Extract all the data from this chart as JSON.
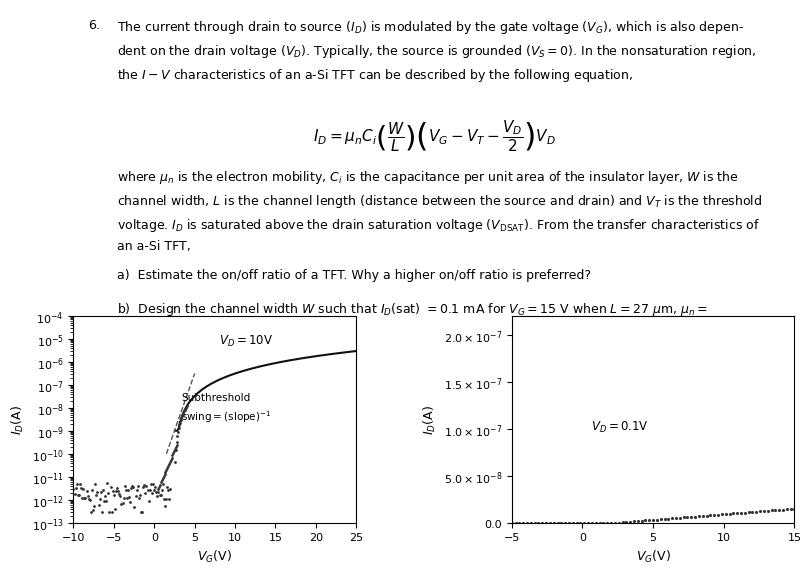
{
  "text_content": {
    "main_number": "6.",
    "left_annotation": "$V_D = 10$V",
    "left_annotation2": "Subthreshold\nswing$=$(slope)$^{-1}$",
    "right_annotation": "$V_D = 0.1$V"
  },
  "left_plot": {
    "xlim": [
      -10,
      25
    ],
    "ylim_log": [
      -13,
      -4
    ],
    "xticks": [
      -10,
      -5,
      0,
      5,
      10,
      15,
      20,
      25
    ],
    "vt": 2.5,
    "noise_floor": 2e-12
  },
  "right_plot": {
    "xlim": [
      -5,
      15
    ],
    "ylim": [
      0,
      2.2e-07
    ],
    "yticks": [
      0,
      5e-08,
      1e-07,
      1.5e-07,
      2e-07
    ],
    "xticks": [
      -5,
      0,
      5,
      10,
      15
    ],
    "vt": 2.5,
    "mu_ci_wl": 1.2e-08,
    "vd": 0.1
  },
  "colors": {
    "dots": "#333333",
    "dashed_line": "#555555",
    "solid_line": "#111111",
    "text": "#000000",
    "background": "#ffffff"
  },
  "font_size": 9
}
